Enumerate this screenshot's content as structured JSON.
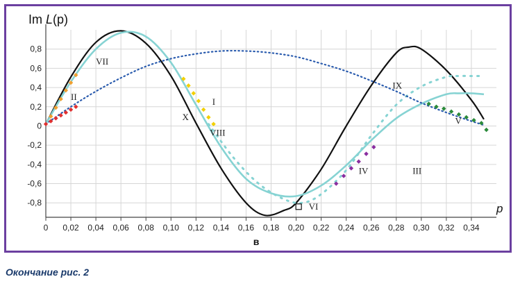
{
  "chart_data": {
    "type": "line",
    "ylabel_prefix": "Im ",
    "ylabel_func": "L",
    "ylabel_arg": "(p)",
    "xlabel": "p",
    "sublabel": "в",
    "xlim": [
      0,
      0.36
    ],
    "ylim": [
      -0.95,
      1.0
    ],
    "x_ticks": [
      "0",
      "0,02",
      "0,04",
      "0,06",
      "0,08",
      "0,10",
      "0,12",
      "0,14",
      "0,16",
      "0,18",
      "0,20",
      "0,22",
      "0,24",
      "0,26",
      "0,28",
      "0,30",
      "0,32",
      "0,34"
    ],
    "x_tick_values": [
      0,
      0.02,
      0.04,
      0.06,
      0.08,
      0.1,
      0.12,
      0.14,
      0.16,
      0.18,
      0.2,
      0.22,
      0.24,
      0.26,
      0.28,
      0.3,
      0.32,
      0.34
    ],
    "y_ticks": [
      "0,8",
      "0,6",
      "0,4",
      "0,2",
      "0",
      "-0,2",
      "-0,4",
      "-0,6",
      "-0,8"
    ],
    "y_tick_values": [
      0.8,
      0.6,
      0.4,
      0.2,
      0,
      -0.2,
      -0.4,
      -0.6,
      -0.8
    ],
    "grid": true,
    "colors": {
      "black": "#111111",
      "cyan": "#86d3d3",
      "blue": "#2b5cae",
      "orange": "#f0a030",
      "yellow": "#f2d000",
      "red": "#e03030",
      "purple": "#8a2ea0",
      "green": "#2a8a3a",
      "frame": "#6b3fa0"
    },
    "series": [
      {
        "style": "black-solid",
        "x": [
          0,
          0.02,
          0.04,
          0.06,
          0.08,
          0.1,
          0.12,
          0.14,
          0.16,
          0.175,
          0.19,
          0.2,
          0.22,
          0.24,
          0.26,
          0.28,
          0.29,
          0.3,
          0.32,
          0.34,
          0.35
        ],
        "y": [
          0.02,
          0.51,
          0.87,
          0.99,
          0.86,
          0.52,
          0.03,
          -0.44,
          -0.8,
          -0.93,
          -0.88,
          -0.8,
          -0.45,
          0.0,
          0.42,
          0.76,
          0.82,
          0.8,
          0.58,
          0.27,
          0.07
        ]
      },
      {
        "style": "cyan-solid",
        "x": [
          0,
          0.02,
          0.04,
          0.06,
          0.08,
          0.1,
          0.12,
          0.14,
          0.16,
          0.18,
          0.2,
          0.22,
          0.24,
          0.26,
          0.28,
          0.3,
          0.32,
          0.33,
          0.34,
          0.35
        ],
        "y": [
          0.02,
          0.46,
          0.8,
          0.97,
          0.93,
          0.66,
          0.22,
          -0.22,
          -0.55,
          -0.7,
          -0.73,
          -0.62,
          -0.41,
          -0.15,
          0.08,
          0.23,
          0.33,
          0.34,
          0.34,
          0.33
        ]
      },
      {
        "style": "cyan-dotted",
        "x": [
          0.13,
          0.15,
          0.17,
          0.19,
          0.205,
          0.22,
          0.24,
          0.26,
          0.28,
          0.3,
          0.32,
          0.33,
          0.34,
          0.35
        ],
        "y": [
          0.02,
          -0.33,
          -0.6,
          -0.76,
          -0.8,
          -0.71,
          -0.46,
          -0.1,
          0.22,
          0.41,
          0.51,
          0.52,
          0.52,
          0.52
        ]
      },
      {
        "style": "blue-dotted",
        "x": [
          0,
          0.02,
          0.04,
          0.06,
          0.08,
          0.1,
          0.12,
          0.14,
          0.16,
          0.18,
          0.2,
          0.22,
          0.24,
          0.26,
          0.28,
          0.3,
          0.32,
          0.34,
          0.35
        ],
        "y": [
          0.02,
          0.2,
          0.36,
          0.5,
          0.62,
          0.7,
          0.75,
          0.78,
          0.78,
          0.76,
          0.72,
          0.65,
          0.57,
          0.47,
          0.36,
          0.24,
          0.14,
          0.05,
          0.01
        ]
      },
      {
        "style": "red-diamonds",
        "x": [
          0.0,
          0.004,
          0.008,
          0.012,
          0.016,
          0.02,
          0.024
        ],
        "y": [
          0.02,
          0.05,
          0.08,
          0.11,
          0.14,
          0.17,
          0.2
        ]
      },
      {
        "style": "orange-diamonds",
        "x": [
          0.004,
          0.008,
          0.012,
          0.016,
          0.02,
          0.024
        ],
        "y": [
          0.1,
          0.19,
          0.28,
          0.37,
          0.45,
          0.53
        ]
      },
      {
        "style": "yellow-diamonds",
        "x": [
          0.11,
          0.114,
          0.118,
          0.122,
          0.126,
          0.13,
          0.134
        ],
        "y": [
          0.49,
          0.42,
          0.34,
          0.26,
          0.17,
          0.09,
          0.02
        ]
      },
      {
        "style": "purple-diamonds",
        "x": [
          0.232,
          0.238,
          0.244,
          0.25,
          0.256,
          0.262
        ],
        "y": [
          -0.6,
          -0.52,
          -0.44,
          -0.37,
          -0.29,
          -0.22
        ]
      },
      {
        "style": "green-diamonds",
        "x": [
          0.306,
          0.312,
          0.318,
          0.324,
          0.33,
          0.336,
          0.342,
          0.348,
          0.352
        ],
        "y": [
          0.23,
          0.2,
          0.18,
          0.15,
          0.12,
          0.09,
          0.06,
          0.03,
          -0.04
        ]
      },
      {
        "style": "open-square",
        "x": [
          0.202
        ],
        "y": [
          -0.84
        ]
      }
    ],
    "annotations": [
      {
        "text": "VII",
        "x": 0.04,
        "y": 0.64
      },
      {
        "text": "II",
        "x": 0.02,
        "y": 0.27
      },
      {
        "text": "I",
        "x": 0.133,
        "y": 0.22
      },
      {
        "text": "X",
        "x": 0.109,
        "y": 0.06
      },
      {
        "text": "VIII",
        "x": 0.131,
        "y": -0.1
      },
      {
        "text": "IX",
        "x": 0.277,
        "y": 0.39
      },
      {
        "text": "V",
        "x": 0.327,
        "y": 0.02
      },
      {
        "text": "IV",
        "x": 0.25,
        "y": -0.5
      },
      {
        "text": "III",
        "x": 0.293,
        "y": -0.5
      },
      {
        "text": "VI",
        "x": 0.21,
        "y": -0.87
      }
    ]
  },
  "caption": "Окончание рис. 2"
}
